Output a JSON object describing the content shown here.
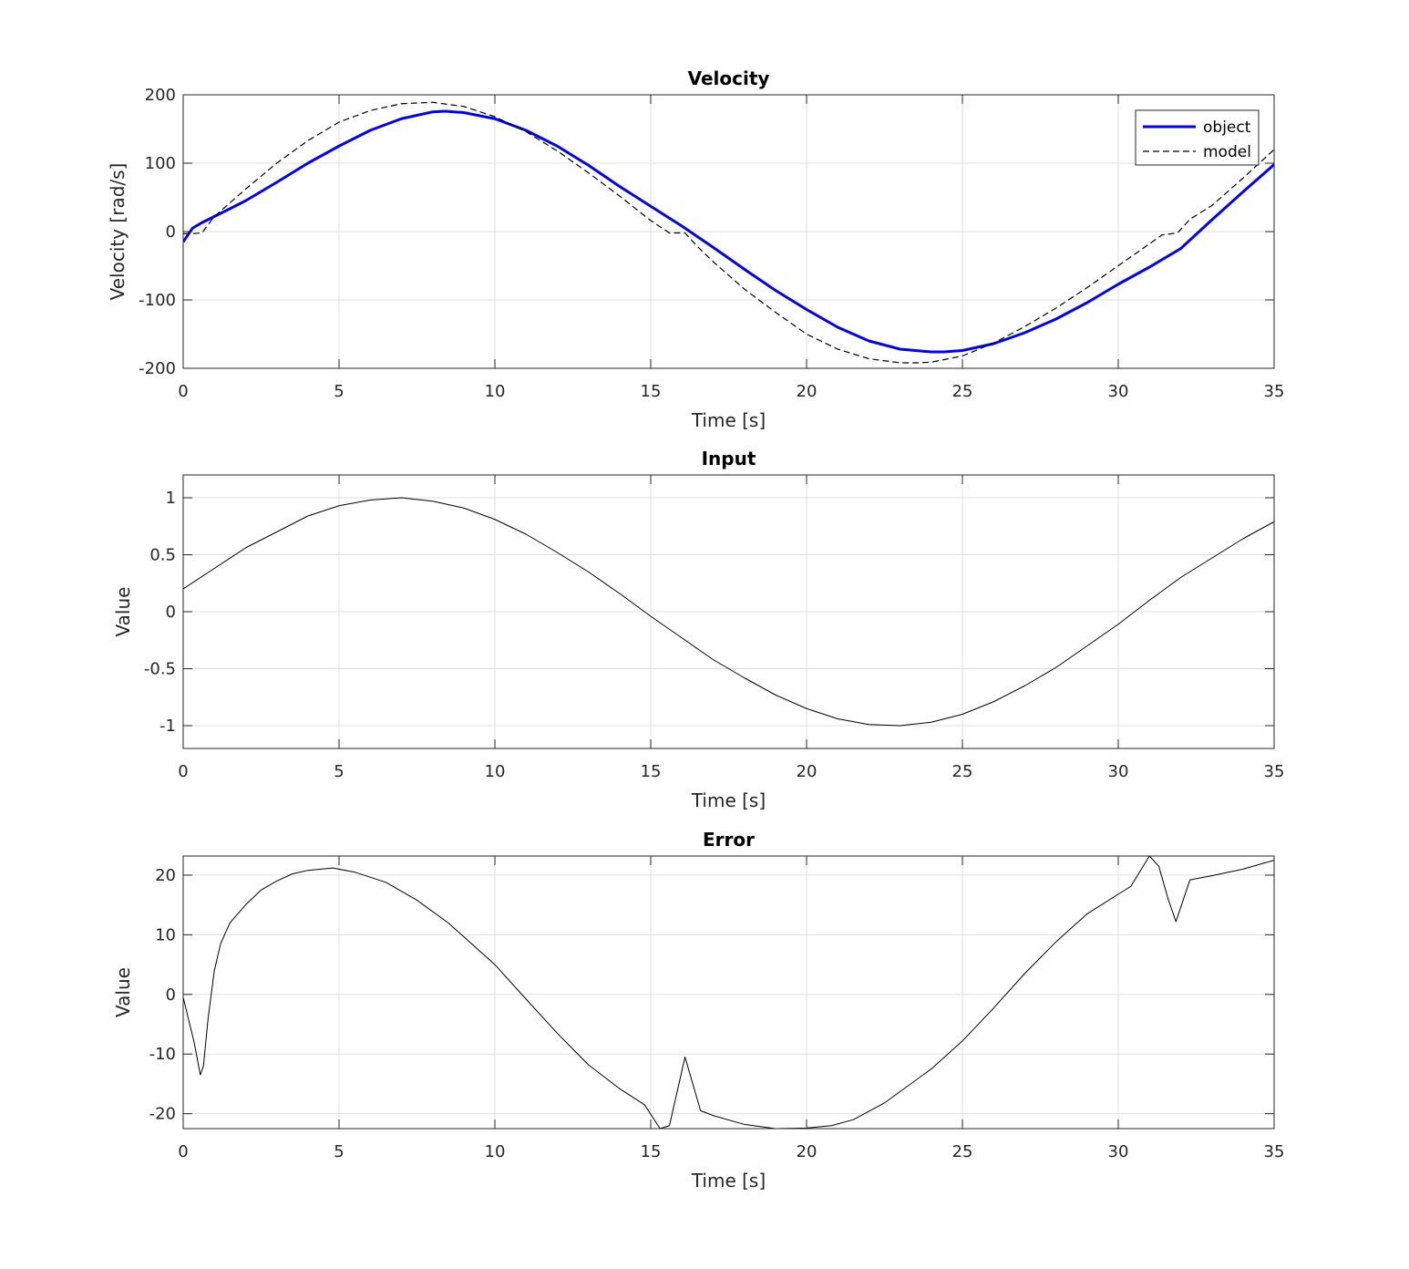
{
  "chart_data": [
    {
      "type": "line",
      "title": "Velocity",
      "xlabel": "Time [s]",
      "ylabel": "Velocity [rad/s]",
      "xlim": [
        0,
        35
      ],
      "ylim": [
        -200,
        200
      ],
      "xticks": [
        0,
        5,
        10,
        15,
        20,
        25,
        30,
        35
      ],
      "yticks": [
        -200,
        -100,
        0,
        100,
        200
      ],
      "grid": true,
      "legend": "top-right",
      "series": [
        {
          "name": "object",
          "color": "#0000ff",
          "style": "solid-thick",
          "x": [
            0,
            0.3,
            0.6,
            1,
            2,
            3,
            4,
            5,
            6,
            7,
            8,
            8.4,
            9,
            10,
            11,
            12,
            13,
            14,
            15,
            16,
            17,
            18,
            19,
            20,
            21,
            22,
            23,
            24,
            24.4,
            25,
            26,
            27,
            28,
            29,
            30,
            31,
            32,
            33,
            34,
            35
          ],
          "y": [
            -15,
            5,
            13,
            22,
            45,
            72,
            100,
            125,
            148,
            165,
            175,
            176,
            174,
            165,
            148,
            125,
            97,
            66,
            37,
            8,
            -23,
            -55,
            -86,
            -114,
            -140,
            -160,
            -172,
            -176,
            -176,
            -174,
            -164,
            -148,
            -128,
            -104,
            -77,
            -52,
            -25,
            17,
            58,
            98
          ]
        },
        {
          "name": "model",
          "color": "#000000",
          "style": "dashed",
          "x": [
            0,
            0.3,
            0.6,
            0.8,
            1,
            2,
            3,
            4,
            5,
            6,
            7,
            8,
            9,
            10,
            11,
            12,
            13,
            14,
            15,
            15.6,
            16.1,
            16.5,
            17,
            18,
            19,
            20,
            21,
            22,
            23,
            23.6,
            24,
            25,
            26,
            27,
            28,
            29,
            30,
            31,
            31.4,
            31.9,
            32.3,
            33,
            34,
            35
          ],
          "y": [
            -3,
            -3,
            -2,
            10,
            22,
            62,
            100,
            133,
            160,
            177,
            187,
            189,
            183,
            168,
            146,
            118,
            86,
            52,
            16,
            -2,
            -2,
            -22,
            -44,
            -84,
            -118,
            -150,
            -172,
            -186,
            -192,
            -192,
            -191,
            -182,
            -163,
            -139,
            -112,
            -82,
            -50,
            -18,
            -5,
            -2,
            18,
            38,
            78,
            120
          ]
        }
      ]
    },
    {
      "type": "line",
      "title": "Input",
      "xlabel": "Time [s]",
      "ylabel": "Value",
      "xlim": [
        0,
        35
      ],
      "ylim": [
        -1.2,
        1.2
      ],
      "xticks": [
        0,
        5,
        10,
        15,
        20,
        25,
        30,
        35
      ],
      "yticks": [
        -1,
        -0.5,
        0,
        0.5,
        1
      ],
      "ytick_labels": [
        "-1",
        "-0.5",
        "0",
        "0.5",
        "1"
      ],
      "grid": true,
      "series": [
        {
          "color": "#000000",
          "style": "solid-thin",
          "function": "sin",
          "x": [
            0,
            1,
            2,
            3,
            4,
            5,
            6,
            7,
            8,
            9,
            10,
            11,
            12,
            13,
            14,
            15,
            16,
            17,
            18,
            19,
            20,
            21,
            22,
            23,
            24,
            25,
            26,
            27,
            28,
            29,
            30,
            31,
            32,
            33,
            34,
            35
          ],
          "y": [
            0.2,
            0.38,
            0.56,
            0.7,
            0.84,
            0.93,
            0.98,
            1.0,
            0.97,
            0.91,
            0.81,
            0.68,
            0.52,
            0.35,
            0.16,
            -0.04,
            -0.23,
            -0.42,
            -0.58,
            -0.73,
            -0.85,
            -0.94,
            -0.99,
            -1.0,
            -0.97,
            -0.9,
            -0.79,
            -0.65,
            -0.49,
            -0.3,
            -0.11,
            0.1,
            0.3,
            0.47,
            0.64,
            0.79
          ]
        }
      ]
    },
    {
      "type": "line",
      "title": "Error",
      "xlabel": "Time [s]",
      "ylabel": "Value",
      "xlim": [
        0,
        35
      ],
      "ylim": [
        -22.5,
        23.2
      ],
      "xticks": [
        0,
        5,
        10,
        15,
        20,
        25,
        30,
        35
      ],
      "yticks": [
        -20,
        -10,
        0,
        10,
        20
      ],
      "grid": true,
      "series": [
        {
          "color": "#000000",
          "style": "solid-thin",
          "x": [
            0,
            0.35,
            0.55,
            0.65,
            0.8,
            1.0,
            1.2,
            1.5,
            2,
            2.5,
            3,
            3.5,
            4,
            4.8,
            5.5,
            6.5,
            7.5,
            8.5,
            10,
            11,
            12,
            13,
            14,
            14.8,
            15.3,
            15.6,
            16.1,
            16.6,
            17,
            18,
            19,
            20,
            20.8,
            21.5,
            22.5,
            24,
            25,
            26,
            27,
            28,
            29,
            30,
            30.4,
            31,
            31.3,
            31.6,
            31.85,
            32.3,
            33,
            34,
            35
          ],
          "y": [
            -0.5,
            -8,
            -13.5,
            -12,
            -4,
            4,
            8.5,
            12,
            15,
            17.5,
            19,
            20.2,
            20.8,
            21.2,
            20.5,
            18.8,
            15.8,
            12,
            5,
            -0.8,
            -6.5,
            -11.8,
            -15.8,
            -18.5,
            -22.5,
            -22,
            -10.5,
            -19.5,
            -20.3,
            -21.8,
            -22.5,
            -22.4,
            -22,
            -21,
            -18.2,
            -12.5,
            -7.8,
            -2.3,
            3.5,
            8.8,
            13.5,
            16.8,
            18.1,
            23.2,
            21.5,
            16,
            12.2,
            19.2,
            19.9,
            21,
            22.5
          ]
        }
      ]
    }
  ]
}
